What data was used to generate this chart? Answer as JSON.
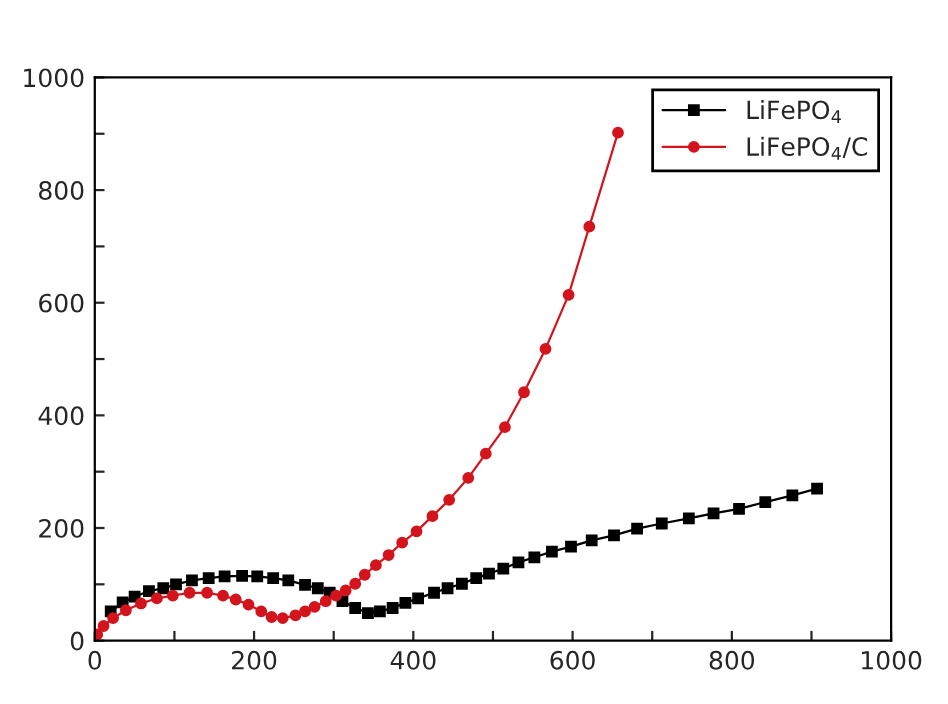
{
  "chart_data": {
    "type": "line",
    "xlim": [
      0,
      1000
    ],
    "ylim": [
      0,
      1000
    ],
    "xticks": [
      0,
      {
        "value": 100,
        "label": null
      },
      200,
      {
        "value": 300,
        "label": null
      },
      400,
      {
        "value": 500,
        "label": null
      },
      600,
      {
        "value": 700,
        "label": null
      },
      800,
      {
        "value": 900,
        "label": null
      },
      1000
    ],
    "yticks": [
      0,
      {
        "value": 100,
        "label": null
      },
      200,
      {
        "value": 300,
        "label": null
      },
      400,
      {
        "value": 500,
        "label": null
      },
      600,
      {
        "value": 700,
        "label": null
      },
      800,
      {
        "value": 900,
        "label": null
      },
      1000
    ],
    "grid": false,
    "legend": "top right",
    "line_style": "solid",
    "series": [
      {
        "name": "LiFePO$_{4}$",
        "color": "#000000",
        "marker": "square",
        "x": [
          20,
          35,
          50,
          68,
          86,
          102,
          122,
          143,
          163,
          185,
          204,
          224,
          243,
          264,
          280,
          295,
          311,
          327,
          343,
          358,
          374,
          390,
          406,
          426,
          443,
          461,
          479,
          495,
          513,
          532,
          552,
          574,
          598,
          624,
          652,
          681,
          712,
          746,
          777,
          809,
          842,
          876,
          907
        ],
        "values": [
          52,
          68,
          78,
          88,
          93,
          100,
          107,
          111,
          114,
          115,
          114,
          111,
          107,
          99,
          93,
          85,
          70,
          58,
          49,
          52,
          58,
          67,
          75,
          85,
          93,
          101,
          111,
          119,
          128,
          139,
          148,
          158,
          167,
          178,
          187,
          199,
          208,
          217,
          226,
          234,
          246,
          258,
          270
        ]
      },
      {
        "name": "LiFePO$_{4}$/C",
        "color": "#d4141c",
        "marker": "circle",
        "x": [
          3,
          11,
          23,
          39,
          58,
          78,
          98,
          119,
          141,
          161,
          177,
          193,
          209,
          222,
          236,
          252,
          264,
          276,
          290,
          303,
          315,
          327,
          339,
          353,
          369,
          386,
          404,
          424,
          445,
          469,
          491,
          515,
          539,
          566,
          595,
          621,
          657
        ],
        "values": [
          11,
          26,
          40,
          54,
          66,
          75,
          80,
          85,
          85,
          80,
          73,
          64,
          52,
          42,
          40,
          45,
          52,
          60,
          70,
          80,
          89,
          101,
          117,
          134,
          152,
          174,
          194,
          221,
          250,
          289,
          332,
          379,
          441,
          518,
          614,
          735,
          902
        ]
      }
    ]
  }
}
